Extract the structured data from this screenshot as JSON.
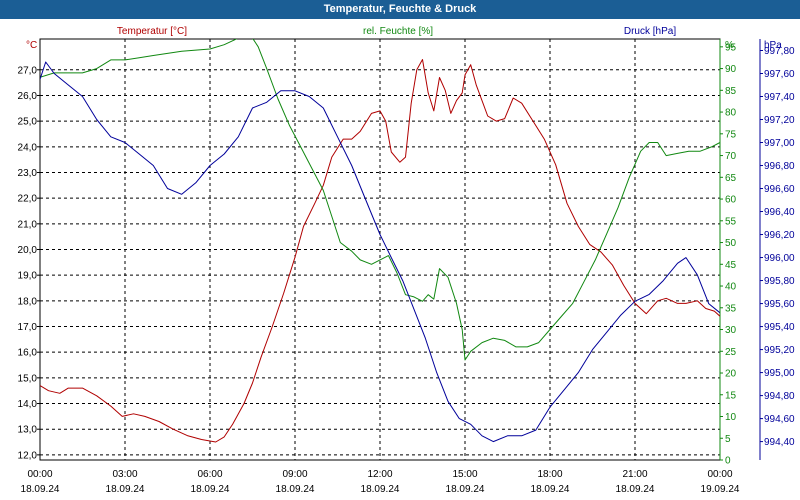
{
  "title": "Temperatur, Feuchte & Druck",
  "colors": {
    "titlebar": "#1b5e95",
    "temperature": "#b00000",
    "humidity": "#118811",
    "pressure": "#00009a",
    "grid": "#000000"
  },
  "chart_data": {
    "type": "line",
    "title": "Temperatur, Feuchte & Druck",
    "grid": true,
    "x_axis": {
      "ticks": [
        {
          "time": "00:00",
          "date": "18.09.24"
        },
        {
          "time": "03:00",
          "date": "18.09.24"
        },
        {
          "time": "06:00",
          "date": "18.09.24"
        },
        {
          "time": "09:00",
          "date": "18.09.24"
        },
        {
          "time": "12:00",
          "date": "18.09.24"
        },
        {
          "time": "15:00",
          "date": "18.09.24"
        },
        {
          "time": "18:00",
          "date": "18.09.24"
        },
        {
          "time": "21:00",
          "date": "18.09.24"
        },
        {
          "time": "00:00",
          "date": "19.09.24"
        }
      ],
      "range_hours": [
        0,
        24
      ]
    },
    "axes": {
      "temperature": {
        "side": "left",
        "unit": "°C",
        "label": "Temperatur [°C]",
        "range": [
          11.8,
          28.2
        ],
        "ticks": [
          "12,0",
          "13,0",
          "14,0",
          "15,0",
          "16,0",
          "17,0",
          "18,0",
          "19,0",
          "20,0",
          "21,0",
          "22,0",
          "23,0",
          "24,0",
          "25,0",
          "26,0",
          "27,0"
        ]
      },
      "humidity": {
        "side": "right",
        "unit": "%",
        "label": "rel. Feuchte [%]",
        "range": [
          0,
          96.8
        ],
        "ticks": [
          "0",
          "5",
          "10",
          "15",
          "20",
          "25",
          "30",
          "35",
          "40",
          "45",
          "50",
          "55",
          "60",
          "65",
          "70",
          "75",
          "80",
          "85",
          "90",
          "95"
        ]
      },
      "pressure": {
        "side": "right",
        "unit": "hPa",
        "label": "Druck [hPa]",
        "range": [
          994.24,
          997.9
        ],
        "ticks": [
          "994,40",
          "994,60",
          "994,80",
          "995,00",
          "995,20",
          "995,40",
          "995,60",
          "995,80",
          "996,00",
          "996,20",
          "996,40",
          "996,60",
          "996,80",
          "997,00",
          "997,20",
          "997,40",
          "997,60",
          "997,80"
        ]
      }
    },
    "series": [
      {
        "name": "Temperatur [°C]",
        "axis": "temperature",
        "points": [
          [
            0,
            14.7
          ],
          [
            0.3,
            14.5
          ],
          [
            0.7,
            14.4
          ],
          [
            1.0,
            14.6
          ],
          [
            1.5,
            14.6
          ],
          [
            2.0,
            14.3
          ],
          [
            2.5,
            13.9
          ],
          [
            2.9,
            13.5
          ],
          [
            3.3,
            13.6
          ],
          [
            3.7,
            13.5
          ],
          [
            4.2,
            13.3
          ],
          [
            4.7,
            13.0
          ],
          [
            5.2,
            12.75
          ],
          [
            5.7,
            12.6
          ],
          [
            6.2,
            12.5
          ],
          [
            6.5,
            12.7
          ],
          [
            6.8,
            13.2
          ],
          [
            7.2,
            14.0
          ],
          [
            7.5,
            14.8
          ],
          [
            7.8,
            15.8
          ],
          [
            8.2,
            17.0
          ],
          [
            8.6,
            18.3
          ],
          [
            9.0,
            19.7
          ],
          [
            9.3,
            20.9
          ],
          [
            9.7,
            21.8
          ],
          [
            10.0,
            22.5
          ],
          [
            10.3,
            23.6
          ],
          [
            10.7,
            24.3
          ],
          [
            11.0,
            24.3
          ],
          [
            11.3,
            24.6
          ],
          [
            11.7,
            25.3
          ],
          [
            12.0,
            25.4
          ],
          [
            12.2,
            25.0
          ],
          [
            12.4,
            23.8
          ],
          [
            12.7,
            23.4
          ],
          [
            12.9,
            23.6
          ],
          [
            13.1,
            25.7
          ],
          [
            13.3,
            27.0
          ],
          [
            13.5,
            27.4
          ],
          [
            13.7,
            26.1
          ],
          [
            13.9,
            25.4
          ],
          [
            14.1,
            26.7
          ],
          [
            14.3,
            26.2
          ],
          [
            14.5,
            25.3
          ],
          [
            14.7,
            25.8
          ],
          [
            14.9,
            26.1
          ],
          [
            15.0,
            26.8
          ],
          [
            15.2,
            27.2
          ],
          [
            15.4,
            26.4
          ],
          [
            15.6,
            25.8
          ],
          [
            15.8,
            25.2
          ],
          [
            16.1,
            25.0
          ],
          [
            16.4,
            25.1
          ],
          [
            16.7,
            25.9
          ],
          [
            17.0,
            25.7
          ],
          [
            17.4,
            25.0
          ],
          [
            17.8,
            24.3
          ],
          [
            18.2,
            23.3
          ],
          [
            18.6,
            21.8
          ],
          [
            19.0,
            20.9
          ],
          [
            19.4,
            20.2
          ],
          [
            19.8,
            19.9
          ],
          [
            20.2,
            19.4
          ],
          [
            20.6,
            18.6
          ],
          [
            21.0,
            17.9
          ],
          [
            21.4,
            17.5
          ],
          [
            21.8,
            18.0
          ],
          [
            22.1,
            18.1
          ],
          [
            22.5,
            17.9
          ],
          [
            22.8,
            17.9
          ],
          [
            23.2,
            18.0
          ],
          [
            23.5,
            17.7
          ],
          [
            23.8,
            17.6
          ],
          [
            24.0,
            17.4
          ]
        ]
      },
      {
        "name": "rel. Feuchte [%]",
        "axis": "humidity",
        "points": [
          [
            0,
            88
          ],
          [
            0.5,
            89
          ],
          [
            1.0,
            89
          ],
          [
            1.5,
            89
          ],
          [
            2.0,
            90
          ],
          [
            2.5,
            92
          ],
          [
            3.0,
            92
          ],
          [
            3.5,
            92.5
          ],
          [
            4.0,
            93
          ],
          [
            5.0,
            94
          ],
          [
            6.0,
            94.5
          ],
          [
            6.5,
            95.5
          ],
          [
            7.0,
            97
          ],
          [
            7.5,
            97
          ],
          [
            7.7,
            95
          ],
          [
            8.0,
            90
          ],
          [
            8.4,
            83
          ],
          [
            8.8,
            77
          ],
          [
            9.2,
            72
          ],
          [
            9.6,
            67
          ],
          [
            10.0,
            62
          ],
          [
            10.3,
            56
          ],
          [
            10.6,
            50
          ],
          [
            11.0,
            48
          ],
          [
            11.3,
            46
          ],
          [
            11.7,
            45
          ],
          [
            12.0,
            46
          ],
          [
            12.3,
            47
          ],
          [
            12.6,
            43
          ],
          [
            12.9,
            38
          ],
          [
            13.2,
            37.5
          ],
          [
            13.5,
            36.5
          ],
          [
            13.7,
            38
          ],
          [
            13.9,
            37
          ],
          [
            14.1,
            44
          ],
          [
            14.4,
            42
          ],
          [
            14.7,
            36
          ],
          [
            14.9,
            30
          ],
          [
            15.0,
            23
          ],
          [
            15.2,
            25
          ],
          [
            15.6,
            27
          ],
          [
            16.0,
            28
          ],
          [
            16.4,
            27.5
          ],
          [
            16.8,
            26
          ],
          [
            17.2,
            26
          ],
          [
            17.6,
            27
          ],
          [
            18.0,
            30
          ],
          [
            18.4,
            33
          ],
          [
            18.8,
            36
          ],
          [
            19.2,
            41
          ],
          [
            19.6,
            46
          ],
          [
            20.0,
            52
          ],
          [
            20.4,
            58
          ],
          [
            20.8,
            65
          ],
          [
            21.2,
            71
          ],
          [
            21.5,
            73
          ],
          [
            21.8,
            73
          ],
          [
            22.1,
            70
          ],
          [
            22.5,
            70.5
          ],
          [
            22.9,
            71
          ],
          [
            23.3,
            71
          ],
          [
            23.7,
            72
          ],
          [
            24.0,
            73
          ]
        ]
      },
      {
        "name": "Druck [hPa]",
        "axis": "pressure",
        "points": [
          [
            0,
            997.55
          ],
          [
            0.2,
            997.7
          ],
          [
            0.5,
            997.6
          ],
          [
            1.0,
            997.5
          ],
          [
            1.5,
            997.4
          ],
          [
            2.0,
            997.2
          ],
          [
            2.5,
            997.05
          ],
          [
            3.0,
            997.0
          ],
          [
            3.5,
            996.9
          ],
          [
            4.0,
            996.8
          ],
          [
            4.5,
            996.6
          ],
          [
            5.0,
            996.55
          ],
          [
            5.5,
            996.65
          ],
          [
            6.0,
            996.8
          ],
          [
            6.5,
            996.9
          ],
          [
            7.0,
            997.05
          ],
          [
            7.5,
            997.3
          ],
          [
            8.0,
            997.35
          ],
          [
            8.5,
            997.45
          ],
          [
            9.0,
            997.45
          ],
          [
            9.5,
            997.4
          ],
          [
            10.0,
            997.3
          ],
          [
            10.5,
            997.05
          ],
          [
            11.0,
            996.8
          ],
          [
            11.5,
            996.5
          ],
          [
            12.0,
            996.2
          ],
          [
            12.4,
            996.0
          ],
          [
            12.8,
            995.8
          ],
          [
            13.2,
            995.55
          ],
          [
            13.6,
            995.3
          ],
          [
            14.0,
            995.0
          ],
          [
            14.4,
            994.75
          ],
          [
            14.8,
            994.6
          ],
          [
            15.2,
            994.55
          ],
          [
            15.6,
            994.45
          ],
          [
            16.0,
            994.4
          ],
          [
            16.5,
            994.45
          ],
          [
            17.0,
            994.45
          ],
          [
            17.5,
            994.5
          ],
          [
            18.0,
            994.7
          ],
          [
            18.5,
            994.85
          ],
          [
            19.0,
            995.0
          ],
          [
            19.5,
            995.2
          ],
          [
            20.0,
            995.35
          ],
          [
            20.5,
            995.5
          ],
          [
            21.0,
            995.62
          ],
          [
            21.5,
            995.68
          ],
          [
            22.0,
            995.8
          ],
          [
            22.5,
            995.95
          ],
          [
            22.8,
            996.0
          ],
          [
            23.2,
            995.85
          ],
          [
            23.6,
            995.6
          ],
          [
            24.0,
            995.52
          ]
        ]
      }
    ]
  }
}
